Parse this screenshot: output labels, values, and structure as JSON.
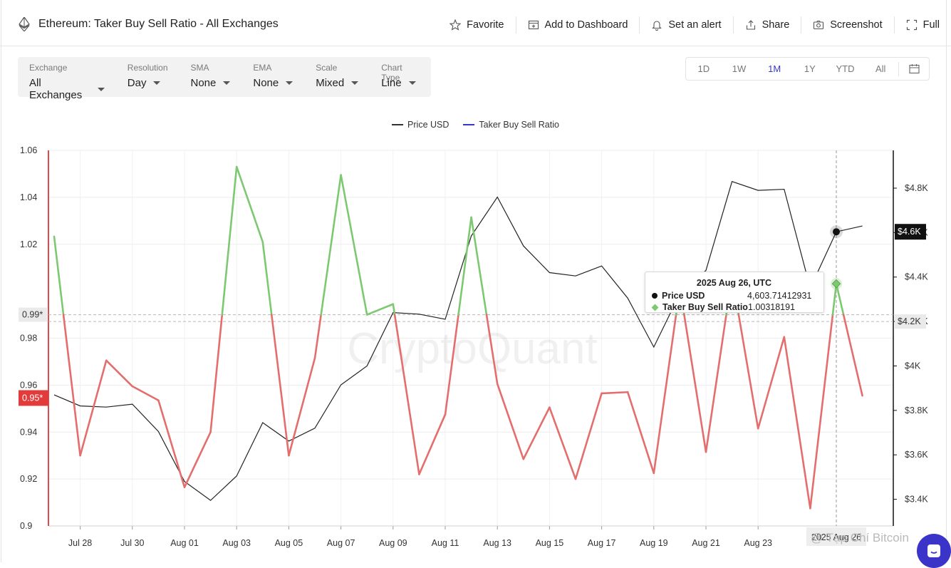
{
  "header": {
    "title": "Ethereum: Taker Buy Sell Ratio - All Exchanges",
    "actions": [
      {
        "label": "Favorite",
        "icon": "star-icon"
      },
      {
        "label": "Add to Dashboard",
        "icon": "dashboard-add-icon"
      },
      {
        "label": "Set an alert",
        "icon": "bell-icon"
      },
      {
        "label": "Share",
        "icon": "share-icon"
      },
      {
        "label": "Screenshot",
        "icon": "camera-icon"
      },
      {
        "label": "Full",
        "icon": "fullscreen-icon"
      }
    ]
  },
  "controls": [
    {
      "label": "Exchange",
      "value": "All Exchanges"
    },
    {
      "label": "Resolution",
      "value": "Day"
    },
    {
      "label": "SMA",
      "value": "None"
    },
    {
      "label": "EMA",
      "value": "None"
    },
    {
      "label": "Scale",
      "value": "Mixed"
    },
    {
      "label": "Chart Type",
      "value": "Line"
    }
  ],
  "ranges": [
    "1D",
    "1W",
    "1M",
    "1Y",
    "YTD",
    "All"
  ],
  "active_range": "1M",
  "legend": [
    {
      "name": "Price USD",
      "color": "#333333"
    },
    {
      "name": "Taker Buy Sell Ratio",
      "color": "#3a35c8"
    }
  ],
  "tooltip": {
    "date": "2025 Aug 26, UTC",
    "price_label": "Price USD",
    "price_value": "4,603.71412931",
    "ratio_label": "Taker Buy Sell Ratio",
    "ratio_value": "1.00318191"
  },
  "crosshair_date": "2025 Aug 26",
  "watermark": "CryptoQuant",
  "overlay_text": "@ Tạp Chí Bitcoin",
  "colors": {
    "above_threshold": "#7dc971",
    "below_threshold": "#e46d6d",
    "price": "#222222",
    "accent": "#3a35c8"
  },
  "chart_data": {
    "type": "line",
    "x": [
      "Jul 27",
      "Jul 28",
      "Jul 29",
      "Jul 30",
      "Jul 31",
      "Aug 01",
      "Aug 02",
      "Aug 03",
      "Aug 04",
      "Aug 05",
      "Aug 06",
      "Aug 07",
      "Aug 08",
      "Aug 09",
      "Aug 10",
      "Aug 11",
      "Aug 12",
      "Aug 13",
      "Aug 14",
      "Aug 15",
      "Aug 16",
      "Aug 17",
      "Aug 18",
      "Aug 19",
      "Aug 20",
      "Aug 21",
      "Aug 22",
      "Aug 23",
      "Aug 24",
      "Aug 25",
      "Aug 26",
      "Aug 27"
    ],
    "x_tick_labels": [
      "Jul 28",
      "Jul 30",
      "Aug 01",
      "Aug 03",
      "Aug 05",
      "Aug 07",
      "Aug 09",
      "Aug 11",
      "Aug 13",
      "Aug 15",
      "Aug 17",
      "Aug 19",
      "Aug 21",
      "Aug 23"
    ],
    "series": [
      {
        "name": "Taker Buy Sell Ratio",
        "axis": "left",
        "threshold": 0.99,
        "values": [
          1.0233,
          0.93,
          0.9705,
          0.9595,
          0.9535,
          0.9165,
          0.94,
          1.053,
          1.021,
          0.93,
          0.9715,
          1.0495,
          0.99,
          0.9945,
          0.922,
          0.9475,
          1.0315,
          0.9605,
          0.9285,
          0.9505,
          0.92,
          0.9565,
          0.957,
          0.9225,
          1.0015,
          0.9315,
          1.0065,
          0.9415,
          0.9805,
          0.9075,
          1.00318,
          0.9555
        ]
      },
      {
        "name": "Price USD",
        "axis": "right",
        "values": [
          3870,
          3820,
          3815,
          3828,
          3705,
          3480,
          3395,
          3505,
          3745,
          3662,
          3720,
          3915,
          4000,
          4240,
          4233,
          4210,
          4585,
          4760,
          4540,
          4420,
          4405,
          4450,
          4305,
          4085,
          4325,
          4430,
          4830,
          4790,
          4795,
          4350,
          4603.71,
          4630
        ]
      }
    ],
    "y_left": {
      "ticks": [
        1.06,
        1.04,
        1.02,
        0.98,
        0.96,
        0.94,
        0.92,
        0.9
      ],
      "labels": [
        "1.06",
        "1.04",
        "1.02",
        "0.98",
        "0.96",
        "0.94",
        "0.92",
        "0.9"
      ],
      "min": 0.9,
      "max": 1.06,
      "marker": "0.99*",
      "marker_value": 0.99,
      "marker2": "0.95*",
      "marker2_value": 0.9545
    },
    "y_right": {
      "ticks": [
        3400,
        3600,
        3800,
        4000,
        4200,
        4400,
        4600,
        4800
      ],
      "labels": [
        "$3.4K",
        "$3.6K",
        "$3.8K",
        "$4K",
        "$4.2K",
        "$4.4K",
        "$4.6K",
        "$4.8K"
      ],
      "min": 3280,
      "max": 4970,
      "marker": "$4.6K",
      "marker_value": 4603.71,
      "marker2": "$4.2K",
      "marker2_value": 4200
    },
    "grid": true
  }
}
